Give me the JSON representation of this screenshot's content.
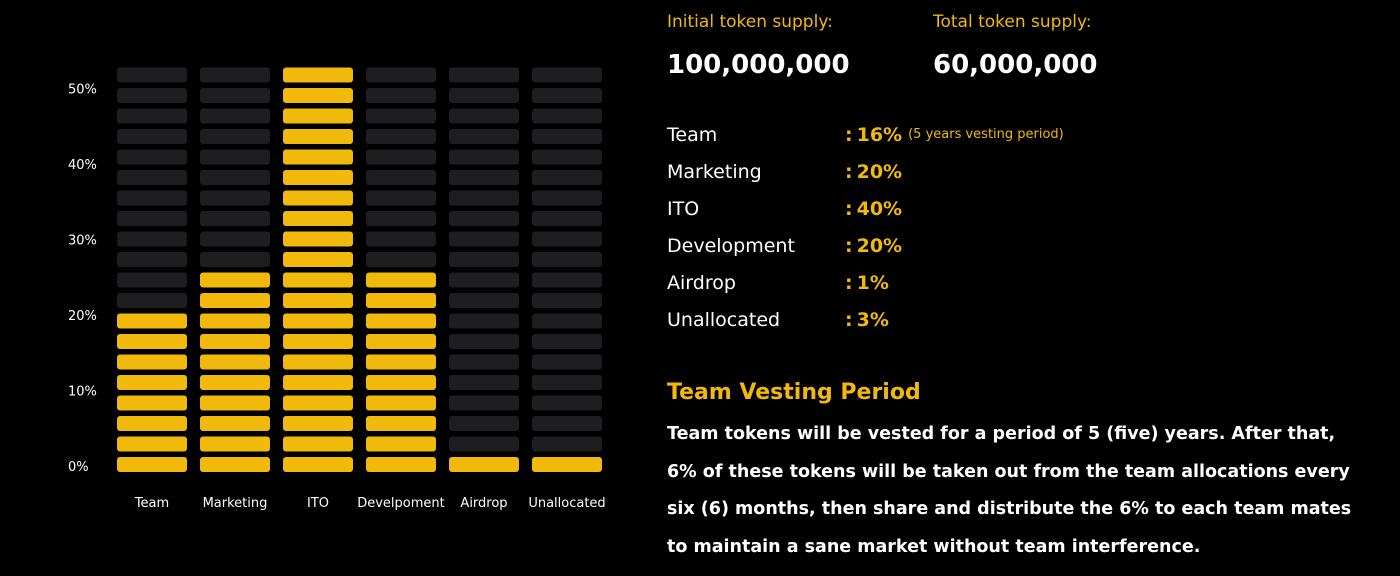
{
  "chart_data": {
    "type": "bar",
    "categories": [
      "Team",
      "Marketing",
      "ITO",
      "Develpoment",
      "Airdrop",
      "Unallocated"
    ],
    "values": [
      16,
      20,
      40,
      20,
      1,
      3
    ],
    "y_ticks": [
      "0%",
      "10%",
      "20%",
      "30%",
      "40%",
      "50%"
    ],
    "ylim": [
      0,
      50
    ],
    "grid": false,
    "colors": {
      "filled": "#f0b90b",
      "empty": "#1e1e21",
      "text": "#ffffff"
    }
  },
  "supply": {
    "initial_label": "Initial token supply:",
    "initial_value": "100,000,000",
    "total_label": "Total token supply:",
    "total_value": "60,000,000"
  },
  "allocations": [
    {
      "name": "Team",
      "value": "16%",
      "note": "(5 years vesting period)"
    },
    {
      "name": "Marketing",
      "value": "20%"
    },
    {
      "name": "ITO",
      "value": "40%"
    },
    {
      "name": "Development",
      "value": "20%"
    },
    {
      "name": "Airdrop",
      "value": "1%"
    },
    {
      "name": "Unallocated",
      "value": "3%"
    }
  ],
  "vesting": {
    "title": "Team Vesting Period",
    "text": "Team tokens will be vested for a period of 5 (five) years. After that, 6% of these tokens will be taken out from the team allocations every six (6) months, then share and distribute the 6% to each team mates to maintain a sane market without team interference."
  },
  "colors": {
    "accent": "#f0b90b",
    "background": "#000000"
  }
}
